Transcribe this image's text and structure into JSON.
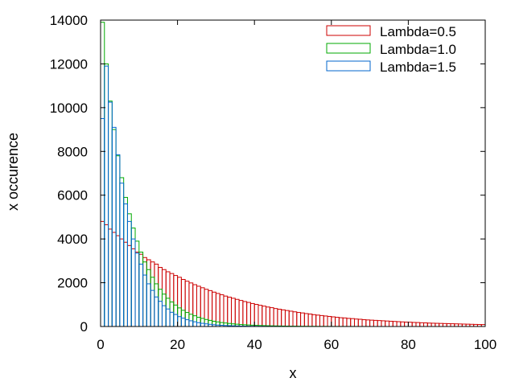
{
  "chart_data": {
    "type": "bar",
    "title": "",
    "xlabel": "x",
    "ylabel": "x occurence",
    "xlim": [
      0,
      100
    ],
    "ylim": [
      0,
      14000
    ],
    "xticks": [
      0,
      20,
      40,
      60,
      80,
      100
    ],
    "yticks": [
      0,
      2000,
      4000,
      6000,
      8000,
      10000,
      12000,
      14000
    ],
    "grid": false,
    "legend_position": "top-right",
    "bin_width": 1,
    "series": [
      {
        "name": "Lambda=0.5",
        "color": "#cc0000",
        "values": [
          4800,
          4650,
          4450,
          4300,
          4150,
          4000,
          3850,
          3700,
          3550,
          3400,
          3300,
          3150,
          3050,
          2950,
          2850,
          2700,
          2600,
          2500,
          2420,
          2330,
          2250,
          2150,
          2070,
          1990,
          1910,
          1840,
          1770,
          1700,
          1640,
          1570,
          1510,
          1450,
          1390,
          1340,
          1290,
          1240,
          1190,
          1140,
          1100,
          1050,
          1010,
          970,
          930,
          890,
          860,
          820,
          790,
          760,
          730,
          700,
          670,
          640,
          620,
          590,
          570,
          540,
          520,
          500,
          480,
          460,
          440,
          420,
          400,
          390,
          370,
          360,
          340,
          330,
          310,
          300,
          290,
          280,
          270,
          260,
          250,
          240,
          230,
          220,
          210,
          200,
          195,
          185,
          180,
          170,
          165,
          155,
          150,
          145,
          140,
          135,
          130,
          125,
          120,
          115,
          110,
          105,
          100,
          95,
          90,
          88
        ]
      },
      {
        "name": "Lambda=1.0",
        "color": "#00aa00",
        "values": [
          13900,
          12000,
          10300,
          9000,
          7800,
          6800,
          5900,
          5150,
          4500,
          3900,
          3400,
          2950,
          2600,
          2250,
          1950,
          1700,
          1480,
          1290,
          1120,
          980,
          850,
          740,
          640,
          560,
          490,
          420,
          370,
          320,
          280,
          240,
          210,
          180,
          160,
          140,
          120,
          105,
          90,
          80,
          70,
          60,
          52,
          45,
          40,
          35,
          30,
          26,
          23,
          20,
          17,
          15,
          13,
          11,
          10,
          9,
          8,
          7,
          6,
          5,
          5,
          4,
          3,
          3,
          3,
          2,
          2,
          2,
          1,
          1,
          1,
          1
        ]
      },
      {
        "name": "Lambda=1.5",
        "color": "#0066cc",
        "values": [
          9500,
          11900,
          10250,
          9100,
          7850,
          6550,
          5600,
          4800,
          4000,
          3350,
          2850,
          2350,
          1950,
          1650,
          1350,
          1150,
          950,
          800,
          650,
          550,
          450,
          380,
          310,
          260,
          215,
          175,
          145,
          120,
          100,
          80,
          65,
          55,
          45,
          37,
          30,
          25,
          20,
          16,
          13,
          11,
          9,
          7,
          6,
          5,
          4,
          3,
          3,
          2,
          2,
          1
        ]
      }
    ]
  }
}
